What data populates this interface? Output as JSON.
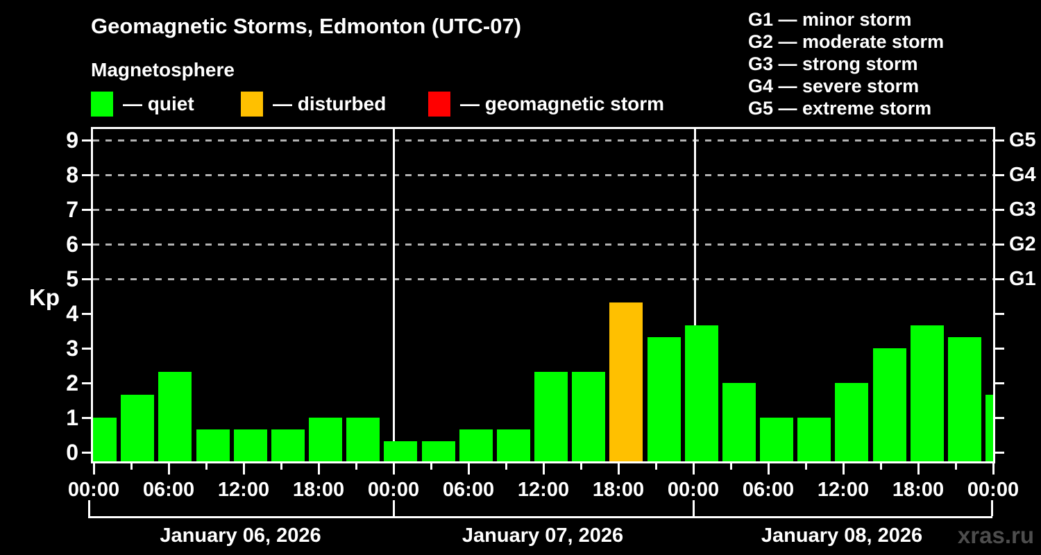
{
  "header": {
    "title": "Geomagnetic Storms, Edmonton (UTC-07)",
    "subtitle": "Magnetosphere",
    "legend": [
      {
        "key": "quiet",
        "label": "— quiet",
        "color": "#00ff00"
      },
      {
        "key": "disturbed",
        "label": "— disturbed",
        "color": "#ffc000"
      },
      {
        "key": "storm",
        "label": "— geomagnetic storm",
        "color": "#ff0000"
      }
    ],
    "g_legend": [
      "G1 — minor storm",
      "G2 — moderate storm",
      "G3 — strong storm",
      "G4 — severe storm",
      "G5 — extreme storm"
    ]
  },
  "chart_data": {
    "type": "bar",
    "title": "Geomagnetic Storms, Edmonton (UTC-07)",
    "subtitle": "Magnetosphere",
    "ylabel": "Kp",
    "ylim": [
      0,
      9
    ],
    "y_ticks": [
      0,
      1,
      2,
      3,
      4,
      5,
      6,
      7,
      8,
      9
    ],
    "grid_dashed_levels": [
      5,
      6,
      7,
      8,
      9
    ],
    "g_scale": [
      {
        "kp": 5,
        "label": "G1"
      },
      {
        "kp": 6,
        "label": "G2"
      },
      {
        "kp": 7,
        "label": "G3"
      },
      {
        "kp": 8,
        "label": "G4"
      },
      {
        "kp": 9,
        "label": "G5"
      }
    ],
    "interval_hours": 3,
    "x_tick_labels": [
      "00:00",
      "06:00",
      "12:00",
      "18:00",
      "00:00",
      "06:00",
      "12:00",
      "18:00",
      "00:00",
      "06:00",
      "12:00",
      "18:00",
      "00:00"
    ],
    "status_colors": {
      "quiet": "#00ff00",
      "disturbed": "#ffc000",
      "storm": "#ff0000"
    },
    "days": [
      {
        "date": "January 06, 2026",
        "values": [
          1.0,
          1.67,
          2.33,
          0.67,
          0.67,
          0.67,
          1.0,
          1.0
        ],
        "statuses": [
          "quiet",
          "quiet",
          "quiet",
          "quiet",
          "quiet",
          "quiet",
          "quiet",
          "quiet"
        ]
      },
      {
        "date": "January 07, 2026",
        "values": [
          0.33,
          0.33,
          0.67,
          0.67,
          2.33,
          2.33,
          4.33,
          3.33
        ],
        "statuses": [
          "quiet",
          "quiet",
          "quiet",
          "quiet",
          "quiet",
          "quiet",
          "disturbed",
          "quiet"
        ]
      },
      {
        "date": "January 08, 2026",
        "values": [
          3.67,
          2.0,
          1.0,
          1.0,
          2.0,
          3.0,
          3.67,
          3.33
        ],
        "statuses": [
          "quiet",
          "quiet",
          "quiet",
          "quiet",
          "quiet",
          "quiet",
          "quiet",
          "quiet"
        ]
      }
    ],
    "partial_next_bar": {
      "value": 1.67,
      "status": "quiet"
    }
  },
  "watermark": "xras.ru"
}
